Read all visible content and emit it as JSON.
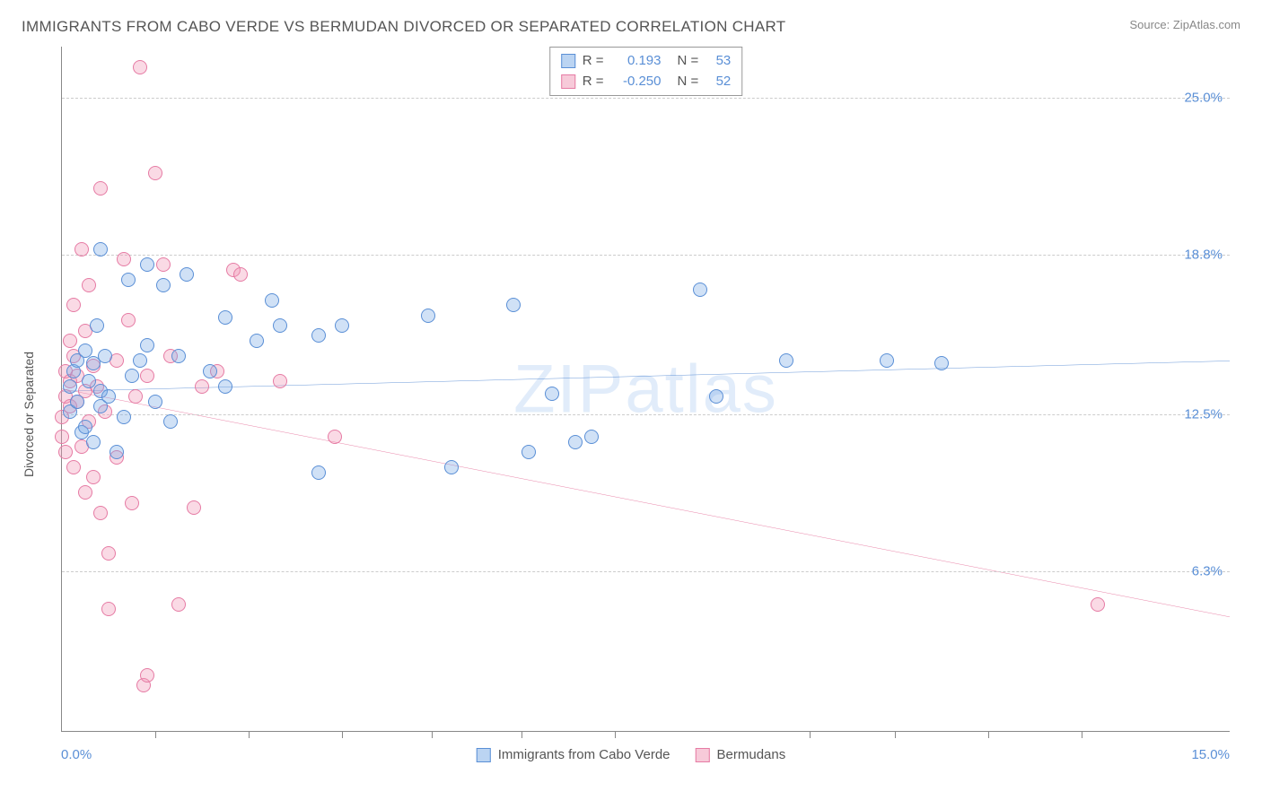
{
  "title": "IMMIGRANTS FROM CABO VERDE VS BERMUDAN DIVORCED OR SEPARATED CORRELATION CHART",
  "source": "Source: ZipAtlas.com",
  "watermark": "ZIPatlas",
  "chart": {
    "type": "scatter",
    "y_axis_label": "Divorced or Separated",
    "x_min": 0.0,
    "x_max": 15.0,
    "y_min": 0.0,
    "y_max": 27.0,
    "x_label_min": "0.0%",
    "x_label_max": "15.0%",
    "y_grid": [
      {
        "value": 6.3,
        "label": "6.3%"
      },
      {
        "value": 12.5,
        "label": "12.5%"
      },
      {
        "value": 18.8,
        "label": "18.8%"
      },
      {
        "value": 25.0,
        "label": "25.0%"
      }
    ],
    "x_ticks": [
      1.2,
      2.4,
      3.6,
      4.75,
      5.9,
      7.1,
      9.6,
      10.7,
      11.9,
      13.1
    ],
    "series": [
      {
        "name": "Immigrants from Cabo Verde",
        "color_fill": "rgba(120,170,230,0.35)",
        "color_stroke": "#5a8fd6",
        "class": "blue",
        "R": "0.193",
        "N": "53",
        "trend": {
          "y_at_x0": 13.4,
          "y_at_xmax": 14.6,
          "color": "#2f6fc9",
          "width": 2
        },
        "points": [
          [
            0.1,
            13.6
          ],
          [
            0.1,
            12.6
          ],
          [
            0.15,
            14.2
          ],
          [
            0.2,
            13.0
          ],
          [
            0.2,
            14.6
          ],
          [
            0.25,
            11.8
          ],
          [
            0.3,
            15.0
          ],
          [
            0.3,
            12.0
          ],
          [
            0.35,
            13.8
          ],
          [
            0.4,
            11.4
          ],
          [
            0.4,
            14.5
          ],
          [
            0.45,
            16.0
          ],
          [
            0.5,
            12.8
          ],
          [
            0.5,
            13.4
          ],
          [
            0.5,
            19.0
          ],
          [
            0.55,
            14.8
          ],
          [
            0.6,
            13.2
          ],
          [
            0.7,
            11.0
          ],
          [
            0.8,
            12.4
          ],
          [
            0.85,
            17.8
          ],
          [
            0.9,
            14.0
          ],
          [
            1.0,
            14.6
          ],
          [
            1.1,
            15.2
          ],
          [
            1.1,
            18.4
          ],
          [
            1.2,
            13.0
          ],
          [
            1.3,
            17.6
          ],
          [
            1.4,
            12.2
          ],
          [
            1.5,
            14.8
          ],
          [
            1.6,
            18.0
          ],
          [
            1.9,
            14.2
          ],
          [
            2.1,
            16.3
          ],
          [
            2.1,
            13.6
          ],
          [
            2.5,
            15.4
          ],
          [
            2.7,
            17.0
          ],
          [
            2.8,
            16.0
          ],
          [
            3.3,
            15.6
          ],
          [
            3.3,
            10.2
          ],
          [
            3.6,
            16.0
          ],
          [
            4.7,
            16.4
          ],
          [
            5.0,
            10.4
          ],
          [
            5.8,
            16.8
          ],
          [
            6.0,
            11.0
          ],
          [
            6.3,
            13.3
          ],
          [
            6.6,
            11.4
          ],
          [
            6.8,
            11.6
          ],
          [
            8.2,
            17.4
          ],
          [
            8.4,
            13.2
          ],
          [
            9.3,
            14.6
          ],
          [
            10.6,
            14.6
          ],
          [
            11.3,
            14.5
          ]
        ]
      },
      {
        "name": "Bermudans",
        "color_fill": "rgba(240,150,180,0.35)",
        "color_stroke": "#e67ba4",
        "class": "pink",
        "R": "-0.250",
        "N": "52",
        "trend": {
          "y_at_x0": 13.5,
          "y_at_xmax": 4.5,
          "color": "#e15587",
          "width": 2
        },
        "points": [
          [
            0.0,
            11.6
          ],
          [
            0.0,
            12.4
          ],
          [
            0.05,
            13.2
          ],
          [
            0.05,
            14.2
          ],
          [
            0.05,
            11.0
          ],
          [
            0.1,
            13.8
          ],
          [
            0.1,
            15.4
          ],
          [
            0.1,
            12.8
          ],
          [
            0.15,
            14.8
          ],
          [
            0.15,
            10.4
          ],
          [
            0.15,
            16.8
          ],
          [
            0.2,
            13.0
          ],
          [
            0.2,
            14.0
          ],
          [
            0.25,
            11.2
          ],
          [
            0.25,
            19.0
          ],
          [
            0.3,
            9.4
          ],
          [
            0.3,
            13.4
          ],
          [
            0.3,
            15.8
          ],
          [
            0.35,
            17.6
          ],
          [
            0.35,
            12.2
          ],
          [
            0.4,
            10.0
          ],
          [
            0.4,
            14.4
          ],
          [
            0.45,
            13.6
          ],
          [
            0.5,
            8.6
          ],
          [
            0.5,
            21.4
          ],
          [
            0.55,
            12.6
          ],
          [
            0.6,
            7.0
          ],
          [
            0.6,
            4.8
          ],
          [
            0.7,
            14.6
          ],
          [
            0.7,
            10.8
          ],
          [
            0.8,
            18.6
          ],
          [
            0.85,
            16.2
          ],
          [
            0.9,
            9.0
          ],
          [
            0.95,
            13.2
          ],
          [
            1.0,
            26.2
          ],
          [
            1.05,
            1.8
          ],
          [
            1.1,
            2.2
          ],
          [
            1.1,
            14.0
          ],
          [
            1.2,
            22.0
          ],
          [
            1.3,
            18.4
          ],
          [
            1.4,
            14.8
          ],
          [
            1.5,
            5.0
          ],
          [
            1.7,
            8.8
          ],
          [
            1.8,
            13.6
          ],
          [
            2.0,
            14.2
          ],
          [
            2.2,
            18.2
          ],
          [
            2.3,
            18.0
          ],
          [
            2.8,
            13.8
          ],
          [
            3.5,
            11.6
          ],
          [
            13.3,
            5.0
          ]
        ]
      }
    ],
    "legend_top": {
      "R_prefix": "R =",
      "N_prefix": "N ="
    }
  }
}
